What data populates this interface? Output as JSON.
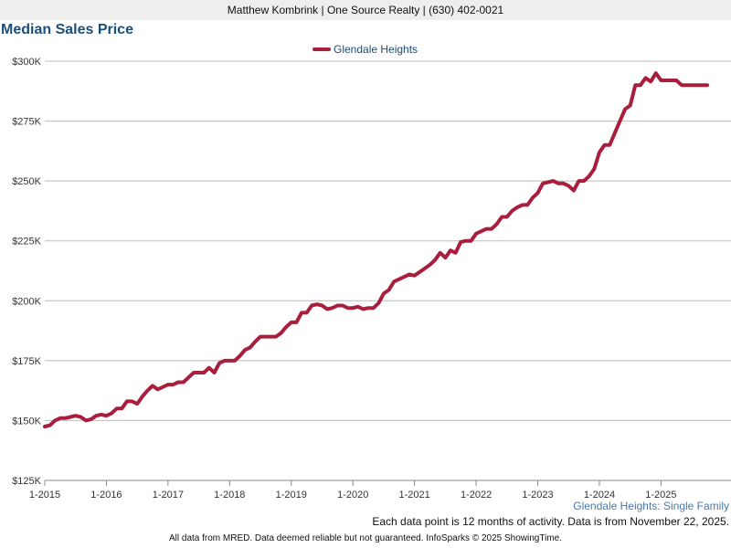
{
  "header": {
    "agent_line": "Matthew Kombrink | One Source Realty | (630) 402-0021"
  },
  "colors": {
    "series": "#a91e3c",
    "title": "#1d4e79",
    "legend_text": "#1d4e79",
    "subtitle_text": "#4a7aa8",
    "grid": "#bbbbbb"
  },
  "footer": {
    "series_label": "Glendale Heights: Single Family",
    "note": "Each data point is 12 months of activity. Data is from November 22, 2025.",
    "disclaimer": "All data from MRED. Data deemed reliable but not guaranteed. InfoSparks © 2025 ShowingTime."
  },
  "chart_data": {
    "type": "line",
    "title": "Median Sales Price",
    "xlabel": "",
    "ylabel": "",
    "ylim": [
      125000,
      300000
    ],
    "y_ticks": [
      {
        "value": 300000,
        "label": "$300K"
      },
      {
        "value": 275000,
        "label": "$275K"
      },
      {
        "value": 250000,
        "label": "$250K"
      },
      {
        "value": 225000,
        "label": "$225K"
      },
      {
        "value": 200000,
        "label": "$200K"
      },
      {
        "value": 175000,
        "label": "$175K"
      },
      {
        "value": 150000,
        "label": "$150K"
      },
      {
        "value": 125000,
        "label": "$125K"
      }
    ],
    "x_ticks": [
      {
        "value": 0,
        "label": "1-2015"
      },
      {
        "value": 12,
        "label": "1-2016"
      },
      {
        "value": 24,
        "label": "1-2017"
      },
      {
        "value": 36,
        "label": "1-2018"
      },
      {
        "value": 48,
        "label": "1-2019"
      },
      {
        "value": 60,
        "label": "1-2020"
      },
      {
        "value": 72,
        "label": "1-2021"
      },
      {
        "value": 84,
        "label": "1-2022"
      },
      {
        "value": 96,
        "label": "1-2023"
      },
      {
        "value": 108,
        "label": "1-2024"
      },
      {
        "value": 120,
        "label": "1-2025"
      }
    ],
    "x_range": [
      0,
      130
    ],
    "legend": {
      "position": "top-center"
    },
    "series": [
      {
        "name": "Glendale Heights",
        "points": [
          [
            0,
            147500
          ],
          [
            1,
            148000
          ],
          [
            2,
            150000
          ],
          [
            3,
            151000
          ],
          [
            4,
            151000
          ],
          [
            5,
            151500
          ],
          [
            6,
            152000
          ],
          [
            7,
            151500
          ],
          [
            8,
            150000
          ],
          [
            9,
            150500
          ],
          [
            10,
            152000
          ],
          [
            11,
            152500
          ],
          [
            12,
            152000
          ],
          [
            13,
            153000
          ],
          [
            14,
            155000
          ],
          [
            15,
            155000
          ],
          [
            16,
            158000
          ],
          [
            17,
            158000
          ],
          [
            18,
            157000
          ],
          [
            19,
            160000
          ],
          [
            20,
            162500
          ],
          [
            21,
            164500
          ],
          [
            22,
            163000
          ],
          [
            23,
            164000
          ],
          [
            24,
            165000
          ],
          [
            25,
            165000
          ],
          [
            26,
            166000
          ],
          [
            27,
            166000
          ],
          [
            28,
            168000
          ],
          [
            29,
            170000
          ],
          [
            30,
            170000
          ],
          [
            31,
            170000
          ],
          [
            32,
            172000
          ],
          [
            33,
            170000
          ],
          [
            34,
            174000
          ],
          [
            35,
            175000
          ],
          [
            36,
            175000
          ],
          [
            37,
            175000
          ],
          [
            38,
            177000
          ],
          [
            39,
            179500
          ],
          [
            40,
            180500
          ],
          [
            41,
            183000
          ],
          [
            42,
            185000
          ],
          [
            43,
            185000
          ],
          [
            44,
            185000
          ],
          [
            45,
            185000
          ],
          [
            46,
            186500
          ],
          [
            47,
            189000
          ],
          [
            48,
            191000
          ],
          [
            49,
            191000
          ],
          [
            50,
            195000
          ],
          [
            51,
            195000
          ],
          [
            52,
            198000
          ],
          [
            53,
            198500
          ],
          [
            54,
            198000
          ],
          [
            55,
            196500
          ],
          [
            56,
            197000
          ],
          [
            57,
            198000
          ],
          [
            58,
            198000
          ],
          [
            59,
            197000
          ],
          [
            60,
            197000
          ],
          [
            61,
            197500
          ],
          [
            62,
            196500
          ],
          [
            63,
            197000
          ],
          [
            64,
            197000
          ],
          [
            65,
            199000
          ],
          [
            66,
            203000
          ],
          [
            67,
            204500
          ],
          [
            68,
            208000
          ],
          [
            69,
            209000
          ],
          [
            70,
            210000
          ],
          [
            71,
            211000
          ],
          [
            72,
            210500
          ],
          [
            73,
            212000
          ],
          [
            74,
            213500
          ],
          [
            75,
            215000
          ],
          [
            76,
            217000
          ],
          [
            77,
            220000
          ],
          [
            78,
            218000
          ],
          [
            79,
            221000
          ],
          [
            80,
            220000
          ],
          [
            81,
            224500
          ],
          [
            82,
            225000
          ],
          [
            83,
            225000
          ],
          [
            84,
            228000
          ],
          [
            85,
            229000
          ],
          [
            86,
            230000
          ],
          [
            87,
            230000
          ],
          [
            88,
            232000
          ],
          [
            89,
            235000
          ],
          [
            90,
            235000
          ],
          [
            91,
            237500
          ],
          [
            92,
            239000
          ],
          [
            93,
            240000
          ],
          [
            94,
            240000
          ],
          [
            95,
            243000
          ],
          [
            96,
            245000
          ],
          [
            97,
            249000
          ],
          [
            98,
            249500
          ],
          [
            99,
            250000
          ],
          [
            100,
            249000
          ],
          [
            101,
            249000
          ],
          [
            102,
            248000
          ],
          [
            103,
            246000
          ],
          [
            104,
            250000
          ],
          [
            105,
            250000
          ],
          [
            106,
            252000
          ],
          [
            107,
            255000
          ],
          [
            108,
            262000
          ],
          [
            109,
            265000
          ],
          [
            110,
            265000
          ],
          [
            111,
            270000
          ],
          [
            112,
            275000
          ],
          [
            113,
            280000
          ],
          [
            114,
            281500
          ],
          [
            115,
            290000
          ],
          [
            116,
            290000
          ],
          [
            117,
            293000
          ],
          [
            118,
            291500
          ],
          [
            119,
            295000
          ],
          [
            120,
            292000
          ],
          [
            121,
            292000
          ],
          [
            122,
            292000
          ],
          [
            123,
            292000
          ],
          [
            124,
            290000
          ],
          [
            125,
            290000
          ],
          [
            126,
            290000
          ],
          [
            127,
            290000
          ],
          [
            128,
            290000
          ],
          [
            129,
            290000
          ]
        ]
      }
    ]
  }
}
